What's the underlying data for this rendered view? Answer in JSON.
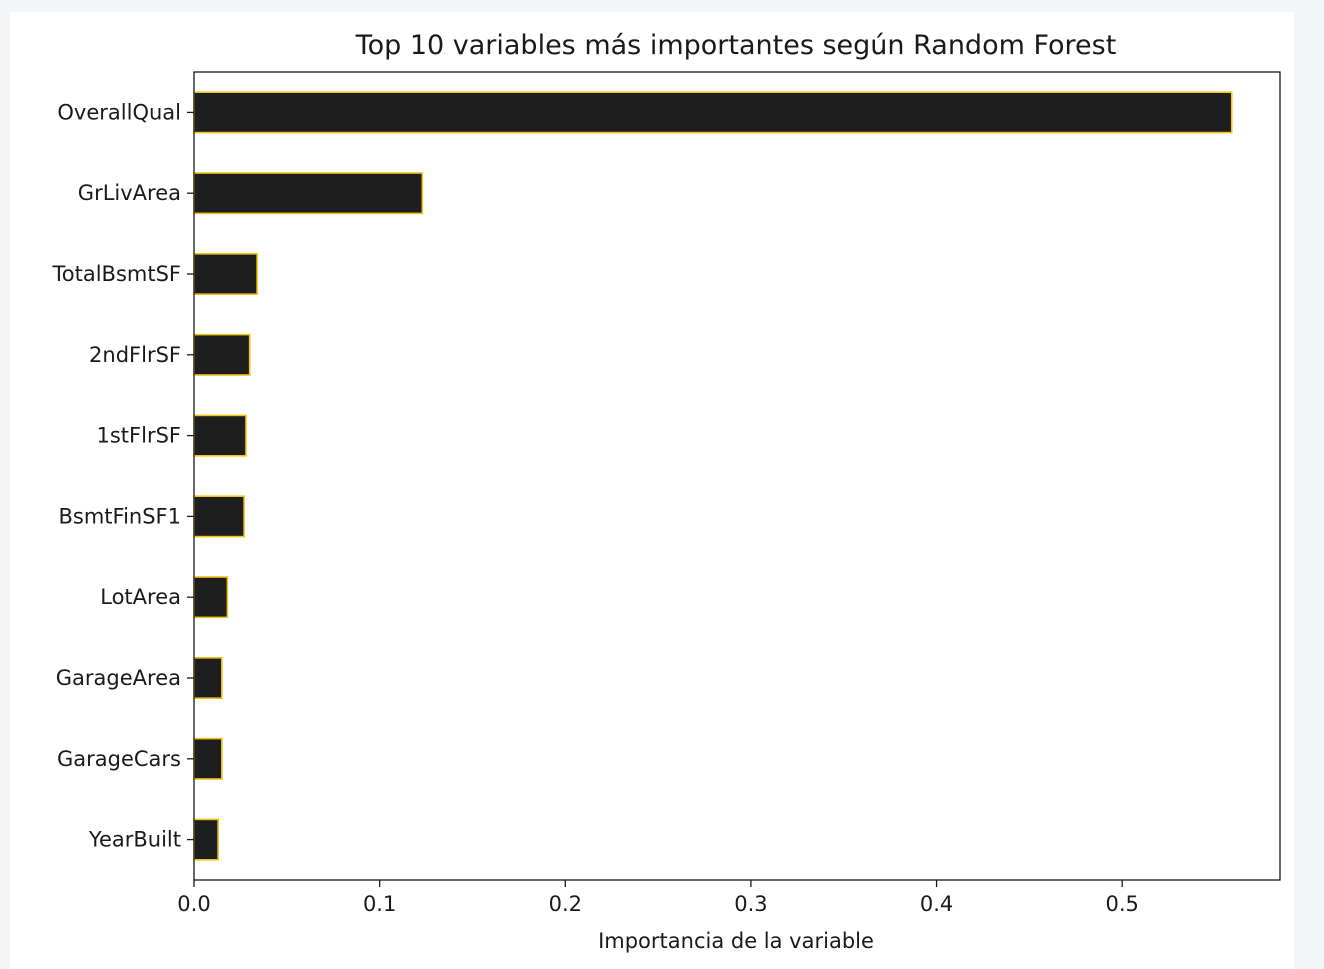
{
  "chart_data": {
    "type": "bar",
    "orientation": "horizontal",
    "title": "Top 10 variables más importantes según Random Forest",
    "xlabel": "Importancia de la variable",
    "ylabel": "",
    "categories": [
      "OverallQual",
      "GrLivArea",
      "TotalBsmtSF",
      "2ndFlrSF",
      "1stFlrSF",
      "BsmtFinSF1",
      "LotArea",
      "GarageArea",
      "GarageCars",
      "YearBuilt"
    ],
    "values": [
      0.559,
      0.123,
      0.034,
      0.03,
      0.028,
      0.027,
      0.018,
      0.015,
      0.015,
      0.013
    ],
    "xlim": [
      0,
      0.585
    ],
    "xticks": [
      "0.0",
      "0.1",
      "0.2",
      "0.3",
      "0.4",
      "0.5"
    ],
    "grid": false,
    "bar_fill_color": "#1e1e1e",
    "bar_edge_color": "#f0c419"
  }
}
